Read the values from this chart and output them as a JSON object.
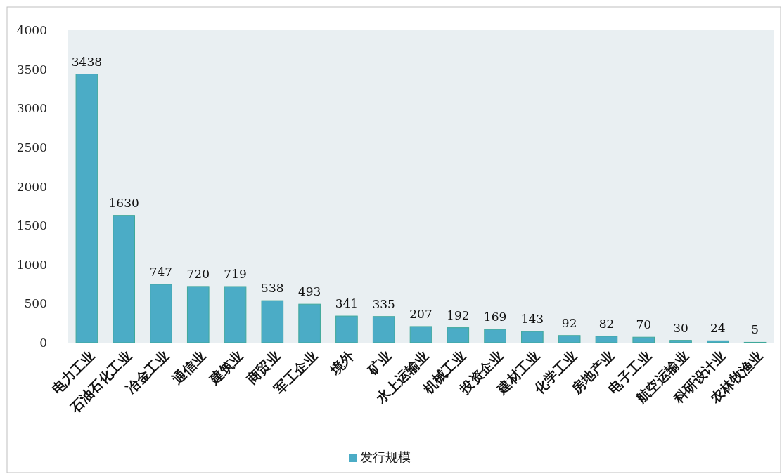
{
  "chart_data": {
    "type": "bar",
    "categories": [
      "电力工业",
      "石油石化工业",
      "冶金工业",
      "通信业",
      "建筑业",
      "商贸业",
      "军工企业",
      "境外",
      "矿业",
      "水上运输业",
      "机械工业",
      "投资企业",
      "建材工业",
      "化学工业",
      "房地产业",
      "电子工业",
      "航空运输业",
      "科研设计业",
      "农林牧渔业"
    ],
    "series": [
      {
        "name": "发行规模",
        "color": "#4bacc6",
        "values": [
          3438,
          1630,
          747,
          720,
          719,
          538,
          493,
          341,
          335,
          207,
          192,
          169,
          143,
          92,
          82,
          70,
          30,
          24,
          5
        ]
      }
    ],
    "ylim": [
      0,
      4000
    ],
    "yticks": [
      0,
      500,
      1000,
      1500,
      2000,
      2500,
      3000,
      3500,
      4000
    ],
    "data_labels": true,
    "legend": "bottom",
    "grid": false
  }
}
